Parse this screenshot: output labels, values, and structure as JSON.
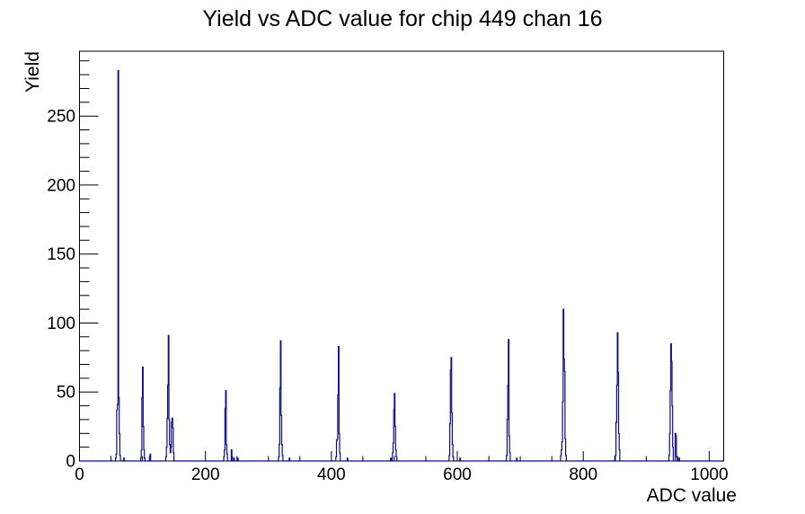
{
  "title": "Yield vs ADC value for chip 449 chan 16",
  "colors": {
    "background": "#ffffff",
    "axis": "#000000",
    "text": "#000000",
    "histogram_line": "#0c0c8c"
  },
  "chart_data": {
    "type": "bar",
    "subtype": "step-histogram",
    "title": "Yield vs ADC value for chip 449 chan 16",
    "xlabel": "ADC value",
    "ylabel": "Yield",
    "xlim": [
      0,
      1023
    ],
    "ylim": [
      0,
      297
    ],
    "grid": false,
    "legend_position": "none",
    "x_major_ticks": [
      0,
      200,
      400,
      600,
      800,
      1000
    ],
    "x_minor_tick_step": 50,
    "y_major_ticks": [
      0,
      50,
      100,
      150,
      200,
      250
    ],
    "y_minor_tick_step": 10,
    "bin_width_adc": 1,
    "bins": [
      [
        57,
        2
      ],
      [
        58,
        5
      ],
      [
        59,
        37
      ],
      [
        60,
        41
      ],
      [
        61,
        283
      ],
      [
        62,
        46
      ],
      [
        63,
        20
      ],
      [
        64,
        4
      ],
      [
        70,
        2
      ],
      [
        97,
        2
      ],
      [
        98,
        8
      ],
      [
        99,
        46
      ],
      [
        100,
        68
      ],
      [
        101,
        25
      ],
      [
        102,
        8
      ],
      [
        103,
        2
      ],
      [
        111,
        3
      ],
      [
        112,
        5
      ],
      [
        137,
        3
      ],
      [
        138,
        10
      ],
      [
        139,
        31
      ],
      [
        140,
        55
      ],
      [
        141,
        91
      ],
      [
        142,
        30
      ],
      [
        143,
        12
      ],
      [
        144,
        6
      ],
      [
        145,
        10
      ],
      [
        146,
        28
      ],
      [
        147,
        31
      ],
      [
        148,
        24
      ],
      [
        149,
        6
      ],
      [
        229,
        3
      ],
      [
        230,
        8
      ],
      [
        231,
        38
      ],
      [
        232,
        51
      ],
      [
        233,
        12
      ],
      [
        234,
        5
      ],
      [
        241,
        8
      ],
      [
        242,
        3
      ],
      [
        245,
        2
      ],
      [
        251,
        2
      ],
      [
        316,
        3
      ],
      [
        317,
        12
      ],
      [
        318,
        53
      ],
      [
        319,
        87
      ],
      [
        320,
        33
      ],
      [
        321,
        12
      ],
      [
        322,
        4
      ],
      [
        333,
        2
      ],
      [
        407,
        3
      ],
      [
        408,
        15
      ],
      [
        409,
        16
      ],
      [
        410,
        48
      ],
      [
        411,
        83
      ],
      [
        412,
        20
      ],
      [
        413,
        6
      ],
      [
        425,
        2
      ],
      [
        494,
        2
      ],
      [
        497,
        6
      ],
      [
        498,
        13
      ],
      [
        499,
        37
      ],
      [
        500,
        49
      ],
      [
        501,
        25
      ],
      [
        502,
        8
      ],
      [
        503,
        3
      ],
      [
        587,
        4
      ],
      [
        588,
        27
      ],
      [
        589,
        66
      ],
      [
        590,
        75
      ],
      [
        591,
        35
      ],
      [
        592,
        12
      ],
      [
        593,
        3
      ],
      [
        604,
        2
      ],
      [
        678,
        4
      ],
      [
        679,
        30
      ],
      [
        680,
        55
      ],
      [
        681,
        88
      ],
      [
        682,
        18
      ],
      [
        683,
        6
      ],
      [
        694,
        2
      ],
      [
        764,
        4
      ],
      [
        765,
        8
      ],
      [
        766,
        14
      ],
      [
        767,
        43
      ],
      [
        768,
        110
      ],
      [
        769,
        74
      ],
      [
        770,
        65
      ],
      [
        771,
        16
      ],
      [
        772,
        4
      ],
      [
        851,
        4
      ],
      [
        852,
        28
      ],
      [
        853,
        55
      ],
      [
        854,
        93
      ],
      [
        855,
        64
      ],
      [
        856,
        20
      ],
      [
        857,
        8
      ],
      [
        936,
        4
      ],
      [
        937,
        20
      ],
      [
        938,
        51
      ],
      [
        939,
        85
      ],
      [
        940,
        72
      ],
      [
        941,
        40
      ],
      [
        942,
        10
      ],
      [
        946,
        20
      ],
      [
        947,
        18
      ],
      [
        948,
        3
      ],
      [
        952,
        2
      ]
    ]
  }
}
